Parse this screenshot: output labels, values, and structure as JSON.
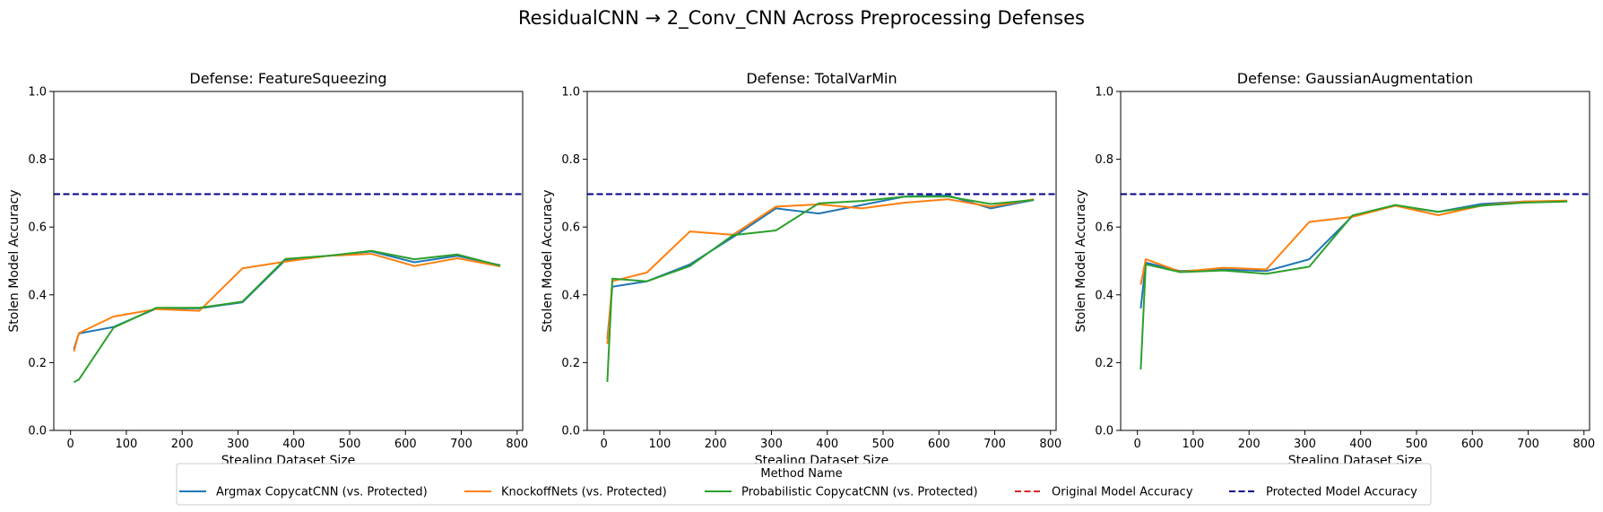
{
  "suptitle": "ResidualCNN → 2_Conv_CNN Across Preprocessing Defenses",
  "colors": {
    "argmax": "#1f77b4",
    "knockoff": "#ff7f0e",
    "probabilistic": "#2ca02c",
    "original": "#d62728",
    "protected": "#00008b"
  },
  "legend": {
    "title": "Method Name",
    "entries": [
      {
        "label": "Argmax CopycatCNN (vs. Protected)",
        "color": "#1f77b4",
        "style": "solid"
      },
      {
        "label": "KnockoffNets (vs. Protected)",
        "color": "#ff7f0e",
        "style": "solid"
      },
      {
        "label": "Probabilistic CopycatCNN (vs. Protected)",
        "color": "#2ca02c",
        "style": "solid"
      },
      {
        "label": "Original Model Accuracy",
        "color": "#d62728",
        "style": "dashed"
      },
      {
        "label": "Protected Model Accuracy",
        "color": "#00008b",
        "style": "dashed"
      }
    ],
    "placement": "bottom-center"
  },
  "chart_data": [
    {
      "type": "line",
      "title": "Defense: FeatureSqueezing",
      "xlabel": "Stealing Dataset Size",
      "ylabel": "Stolen Model Accuracy",
      "xlim": [
        -30,
        810
      ],
      "ylim": [
        0,
        1
      ],
      "xticks": [
        0,
        100,
        200,
        300,
        400,
        500,
        600,
        700,
        800
      ],
      "yticks": [
        0.0,
        0.2,
        0.4,
        0.6,
        0.8,
        1.0
      ],
      "grid": false,
      "hlines": [
        {
          "name": "Original Model Accuracy",
          "y": 0.697,
          "color": "#d62728"
        },
        {
          "name": "Protected Model Accuracy",
          "y": 0.697,
          "color": "#00008b"
        }
      ],
      "series": [
        {
          "name": "Argmax CopycatCNN (vs. Protected)",
          "color": "#1f77b4",
          "x": [
            6,
            15,
            77,
            154,
            231,
            308,
            385,
            462,
            539,
            616,
            693,
            770
          ],
          "y": [
            0.24,
            0.286,
            0.305,
            0.36,
            0.36,
            0.378,
            0.503,
            0.515,
            0.528,
            0.496,
            0.515,
            0.487
          ]
        },
        {
          "name": "KnockoffNets (vs. Protected)",
          "color": "#ff7f0e",
          "x": [
            6,
            15,
            77,
            154,
            231,
            308,
            385,
            462,
            539,
            616,
            693,
            770
          ],
          "y": [
            0.233,
            0.287,
            0.336,
            0.358,
            0.353,
            0.478,
            0.498,
            0.515,
            0.521,
            0.485,
            0.508,
            0.484
          ]
        },
        {
          "name": "Probabilistic CopycatCNN (vs. Protected)",
          "color": "#2ca02c",
          "x": [
            6,
            15,
            77,
            154,
            231,
            308,
            385,
            462,
            539,
            616,
            693,
            770
          ],
          "y": [
            0.142,
            0.15,
            0.303,
            0.362,
            0.362,
            0.38,
            0.506,
            0.515,
            0.53,
            0.505,
            0.519,
            0.486
          ]
        }
      ]
    },
    {
      "type": "line",
      "title": "Defense: TotalVarMin",
      "xlabel": "Stealing Dataset Size",
      "ylabel": "Stolen Model Accuracy",
      "xlim": [
        -30,
        810
      ],
      "ylim": [
        0,
        1
      ],
      "xticks": [
        0,
        100,
        200,
        300,
        400,
        500,
        600,
        700,
        800
      ],
      "yticks": [
        0.0,
        0.2,
        0.4,
        0.6,
        0.8,
        1.0
      ],
      "grid": false,
      "hlines": [
        {
          "name": "Original Model Accuracy",
          "y": 0.697,
          "color": "#d62728"
        },
        {
          "name": "Protected Model Accuracy",
          "y": 0.697,
          "color": "#00008b"
        }
      ],
      "series": [
        {
          "name": "Argmax CopycatCNN (vs. Protected)",
          "color": "#1f77b4",
          "x": [
            6,
            15,
            77,
            154,
            231,
            308,
            385,
            462,
            539,
            616,
            693,
            770
          ],
          "y": [
            0.27,
            0.424,
            0.44,
            0.49,
            0.57,
            0.655,
            0.64,
            0.665,
            0.69,
            0.693,
            0.655,
            0.68
          ]
        },
        {
          "name": "KnockoffNets (vs. Protected)",
          "color": "#ff7f0e",
          "x": [
            6,
            15,
            77,
            154,
            231,
            308,
            385,
            462,
            539,
            616,
            693,
            770
          ],
          "y": [
            0.255,
            0.44,
            0.466,
            0.587,
            0.577,
            0.66,
            0.667,
            0.655,
            0.672,
            0.682,
            0.66,
            0.682
          ]
        },
        {
          "name": "Probabilistic CopycatCNN (vs. Protected)",
          "color": "#2ca02c",
          "x": [
            6,
            15,
            77,
            154,
            231,
            308,
            385,
            462,
            539,
            616,
            693,
            770
          ],
          "y": [
            0.143,
            0.448,
            0.44,
            0.485,
            0.576,
            0.59,
            0.67,
            0.677,
            0.69,
            0.69,
            0.668,
            0.68
          ]
        }
      ]
    },
    {
      "type": "line",
      "title": "Defense: GaussianAugmentation",
      "xlabel": "Stealing Dataset Size",
      "ylabel": "Stolen Model Accuracy",
      "xlim": [
        -30,
        810
      ],
      "ylim": [
        0,
        1
      ],
      "xticks": [
        0,
        100,
        200,
        300,
        400,
        500,
        600,
        700,
        800
      ],
      "yticks": [
        0.0,
        0.2,
        0.4,
        0.6,
        0.8,
        1.0
      ],
      "grid": false,
      "hlines": [
        {
          "name": "Original Model Accuracy",
          "y": 0.697,
          "color": "#d62728"
        },
        {
          "name": "Protected Model Accuracy",
          "y": 0.697,
          "color": "#00008b"
        }
      ],
      "series": [
        {
          "name": "Argmax CopycatCNN (vs. Protected)",
          "color": "#1f77b4",
          "x": [
            6,
            15,
            77,
            154,
            231,
            308,
            385,
            462,
            539,
            616,
            693,
            770
          ],
          "y": [
            0.36,
            0.495,
            0.47,
            0.475,
            0.47,
            0.505,
            0.632,
            0.663,
            0.645,
            0.668,
            0.675,
            0.677
          ]
        },
        {
          "name": "KnockoffNets (vs. Protected)",
          "color": "#ff7f0e",
          "x": [
            6,
            15,
            77,
            154,
            231,
            308,
            385,
            462,
            539,
            616,
            693,
            770
          ],
          "y": [
            0.43,
            0.505,
            0.468,
            0.48,
            0.475,
            0.615,
            0.63,
            0.663,
            0.635,
            0.663,
            0.675,
            0.678
          ]
        },
        {
          "name": "Probabilistic CopycatCNN (vs. Protected)",
          "color": "#2ca02c",
          "x": [
            6,
            15,
            77,
            154,
            231,
            308,
            385,
            462,
            539,
            616,
            693,
            770
          ],
          "y": [
            0.18,
            0.49,
            0.467,
            0.472,
            0.462,
            0.483,
            0.634,
            0.665,
            0.645,
            0.663,
            0.672,
            0.675
          ]
        }
      ]
    }
  ]
}
